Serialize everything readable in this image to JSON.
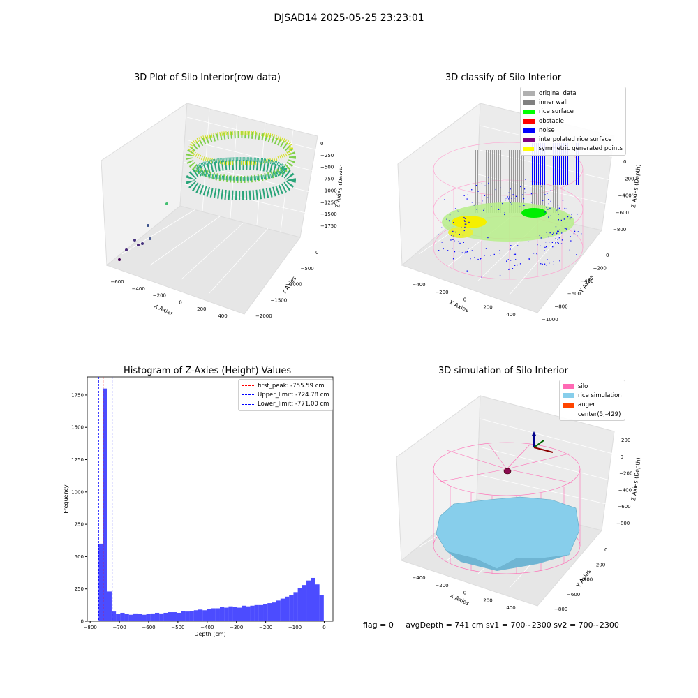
{
  "suptitle": "DJSAD14 2025-05-25 23:23:01",
  "panels": {
    "raw": {
      "title": "3D Plot of Silo Interior(row data)",
      "xlabel": "X Axies",
      "ylabel": "Y Axies",
      "zlabel": "Z Axies (Depth)",
      "xticks": [
        "−600",
        "−400",
        "−200",
        "0",
        "200",
        "400"
      ],
      "yticks": [
        "0",
        "−500",
        "−1000",
        "−1500",
        "−2000"
      ],
      "zticks": [
        "0",
        "−250",
        "−500",
        "−750",
        "−1000",
        "−1250",
        "−1500",
        "−1750"
      ]
    },
    "classify": {
      "title": "3D classify of Silo Interior",
      "xlabel": "X Axies",
      "ylabel": "Y Axies",
      "zlabel": "Z Axies (Depth)",
      "xticks": [
        "−400",
        "−200",
        "0",
        "200",
        "400"
      ],
      "yticks": [
        "0",
        "−200",
        "−400",
        "−600",
        "−800",
        "−1000"
      ],
      "zticks": [
        "0",
        "−200",
        "−400",
        "−600",
        "−800"
      ],
      "legend": [
        {
          "label": "original data",
          "color": "#b0b0b0"
        },
        {
          "label": "inner wall",
          "color": "#808080"
        },
        {
          "label": "rice surface",
          "color": "#00ff00"
        },
        {
          "label": "obstacle",
          "color": "#ff0000"
        },
        {
          "label": "noise",
          "color": "#0000ff"
        },
        {
          "label": "interpolated rice surface",
          "color": "#800080"
        },
        {
          "label": "symmetric generated points",
          "color": "#ffff00"
        }
      ]
    },
    "simulation": {
      "title": "3D simulation of Silo Interior",
      "xlabel": "X Axies",
      "ylabel": "Y Axies",
      "zlabel": "Z Axies (Depth)",
      "xticks": [
        "−400",
        "−200",
        "0",
        "200",
        "400"
      ],
      "yticks": [
        "0",
        "−200",
        "−400",
        "−600",
        "−800"
      ],
      "zticks": [
        "200",
        "0",
        "−200",
        "−400",
        "−600",
        "−800"
      ],
      "legend": [
        {
          "label": "silo",
          "color": "#ff69b4"
        },
        {
          "label": "rice simulation",
          "color": "#87ceeb"
        },
        {
          "label": "auger",
          "color": "#ff4500"
        },
        {
          "label": "center(5,-429)",
          "color": ""
        }
      ]
    }
  },
  "footer": {
    "flag": "flag = 0",
    "stats": "avgDepth = 741 cm  sv1 = 700~2300  sv2 = 700~2300"
  },
  "chart_data": {
    "type": "bar",
    "title": "Histogram of Z-Axies (Height) Values",
    "xlabel": "Depth (cm)",
    "ylabel": "Frequency",
    "xlim": [
      -810,
      30
    ],
    "ylim": [
      0,
      1890
    ],
    "xticks": [
      -800,
      -700,
      -600,
      -500,
      -400,
      -300,
      -200,
      -100,
      0
    ],
    "yticks": [
      0,
      250,
      500,
      750,
      1000,
      1250,
      1500,
      1750
    ],
    "bins_start": -771,
    "bin_width": 14.8,
    "values": [
      600,
      1800,
      230,
      75,
      55,
      65,
      55,
      50,
      60,
      55,
      50,
      55,
      60,
      65,
      60,
      65,
      70,
      70,
      65,
      80,
      75,
      80,
      85,
      90,
      85,
      95,
      100,
      100,
      110,
      105,
      115,
      110,
      105,
      120,
      115,
      120,
      125,
      125,
      135,
      140,
      145,
      160,
      175,
      190,
      200,
      225,
      255,
      280,
      315,
      335,
      285,
      200
    ],
    "bar_color": "#0000ff",
    "lines": [
      {
        "label": "first_peak: -755.59 cm",
        "x": -755.59,
        "color": "#ff0000"
      },
      {
        "label": "Upper_limit: -724.78 cm",
        "x": -724.78,
        "color": "#0000ff"
      },
      {
        "label": "Lower_limit: -771.00 cm",
        "x": -771.0,
        "color": "#0000ff"
      }
    ]
  }
}
